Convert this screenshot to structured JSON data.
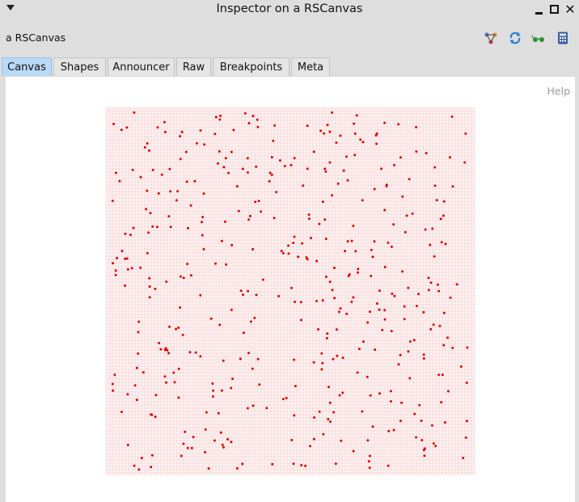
{
  "window": {
    "title": "Inspector on a RSCanvas"
  },
  "header": {
    "object_label": "a RSCanvas",
    "tools": [
      "browse-icon",
      "refresh-icon",
      "glasses-icon",
      "calculator-icon"
    ]
  },
  "tabs": [
    {
      "label": "Canvas",
      "active": true
    },
    {
      "label": "Shapes",
      "active": false
    },
    {
      "label": "Announcer",
      "active": false
    },
    {
      "label": "Raw",
      "active": false
    },
    {
      "label": "Breakpoints",
      "active": false
    },
    {
      "label": "Meta",
      "active": false
    }
  ],
  "panel": {
    "help_label": "Help"
  },
  "canvas": {
    "grid_color": "#f6c7c7",
    "dot_color": "#e00000",
    "dot_count": 436,
    "seed": 7
  }
}
